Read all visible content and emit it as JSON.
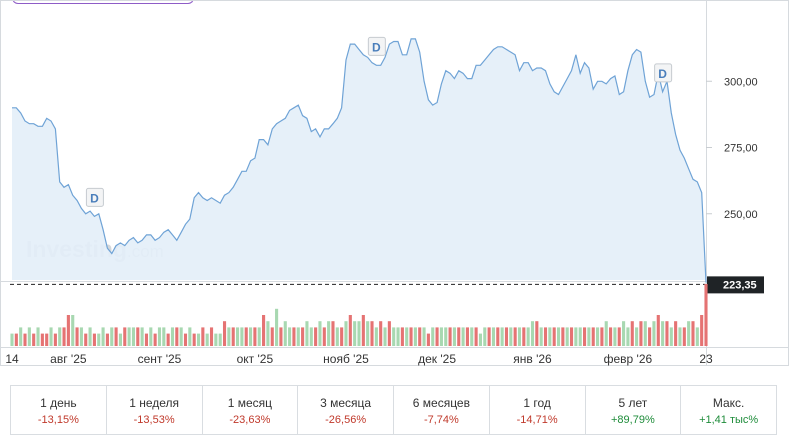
{
  "colors": {
    "line": "#6fa3d6",
    "area": "#e3eef8",
    "vol_up": "#a8d8b1",
    "vol_down": "#e57373",
    "neg": "#c0392b",
    "pos": "#1e8c3a"
  },
  "watermark": {
    "brand": "Investing",
    "suffix": ".com"
  },
  "chart_data": {
    "type": "area",
    "ylim": [
      225,
      325
    ],
    "yticks": [
      "300,00",
      "275,00",
      "250,00"
    ],
    "ytick_values": [
      300,
      275,
      250
    ],
    "current_price": 223.35,
    "current_price_label": "223,35",
    "xticks": [
      {
        "label": "14",
        "index": 0
      },
      {
        "label": "авг '25",
        "index": 13
      },
      {
        "label": "сент '25",
        "index": 34
      },
      {
        "label": "окт '25",
        "index": 56
      },
      {
        "label": "нояб '25",
        "index": 77
      },
      {
        "label": "дек '25",
        "index": 98
      },
      {
        "label": "янв '26",
        "index": 120
      },
      {
        "label": "февр '26",
        "index": 142
      },
      {
        "label": "23",
        "index": 160
      }
    ],
    "series": [
      {
        "values": [
          290,
          290,
          288,
          285,
          284,
          284,
          283,
          283,
          286,
          285,
          282,
          262,
          260,
          261,
          257,
          255,
          252,
          250,
          251,
          249,
          250,
          244,
          237,
          235,
          238,
          239,
          238,
          240,
          241,
          239,
          240,
          242,
          242,
          240,
          241,
          243,
          244,
          242,
          240,
          243,
          246,
          248,
          256,
          258,
          256,
          255,
          256,
          255,
          254,
          257,
          258,
          260,
          263,
          266,
          266,
          270,
          271,
          278,
          278,
          276,
          282,
          284,
          285,
          286,
          289,
          290,
          291,
          287,
          286,
          281,
          282,
          279,
          282,
          282,
          284,
          286,
          290,
          308,
          314,
          314,
          312,
          310,
          309,
          307,
          306,
          306,
          309,
          314,
          315,
          315,
          310,
          310,
          316,
          316,
          311,
          300,
          293,
          291,
          292,
          299,
          304,
          303,
          301,
          304,
          303,
          301,
          301,
          306,
          306,
          308,
          310,
          312,
          313,
          313,
          312,
          311,
          310,
          304,
          307,
          307,
          304,
          305,
          305,
          304,
          299,
          296,
          295,
          298,
          301,
          304,
          310,
          303,
          307,
          305,
          297,
          300,
          300,
          299,
          301,
          302,
          295,
          296,
          304,
          310,
          312,
          311,
          300,
          294,
          295,
          303,
          296,
          300,
          288,
          280,
          274,
          271,
          267,
          263,
          262,
          258,
          224
        ]
      },
      {
        "name": "volume",
        "values": [
          2,
          2,
          3,
          2,
          3,
          2,
          3,
          2,
          2,
          3,
          2,
          3,
          3,
          5,
          5,
          3,
          3,
          2,
          3,
          2,
          2,
          3,
          2,
          3,
          3,
          2,
          3,
          3,
          3,
          3,
          3,
          2,
          3,
          2,
          3,
          3,
          2,
          3,
          3,
          3,
          2,
          3,
          2,
          2,
          3,
          2,
          3,
          2,
          2,
          4,
          3,
          3,
          3,
          3,
          3,
          3,
          3,
          3,
          5,
          4,
          3,
          6,
          3,
          4,
          3,
          3,
          3,
          3,
          4,
          3,
          3,
          4,
          3,
          4,
          4,
          3,
          3,
          4,
          5,
          4,
          4,
          5,
          4,
          4,
          3,
          4,
          3,
          4,
          3,
          3,
          3,
          3,
          3,
          3,
          3,
          3,
          2,
          3,
          3,
          3,
          3,
          3,
          3,
          3,
          3,
          3,
          3,
          3,
          2,
          3,
          3,
          3,
          3,
          3,
          3,
          3,
          3,
          3,
          3,
          3,
          4,
          4,
          3,
          3,
          3,
          3,
          3,
          3,
          3,
          3,
          3,
          3,
          3,
          3,
          3,
          3,
          3,
          4,
          3,
          3,
          3,
          4,
          3,
          4,
          3,
          4,
          4,
          3,
          4,
          5,
          4,
          4,
          3,
          4,
          3,
          3,
          4,
          4,
          3,
          5,
          10
        ]
      }
    ],
    "volume_up": [
      1,
      0,
      1,
      0,
      1,
      0,
      1,
      0,
      0,
      1,
      0,
      1,
      0,
      0,
      1,
      0,
      1,
      0,
      1,
      0,
      1,
      1,
      0,
      1,
      0,
      1,
      0,
      1,
      1,
      0,
      1,
      0,
      1,
      0,
      1,
      1,
      0,
      1,
      0,
      1,
      0,
      1,
      0,
      1,
      0,
      1,
      0,
      1,
      1,
      0,
      1,
      0,
      1,
      1,
      0,
      1,
      0,
      1,
      0,
      1,
      0,
      1,
      0,
      1,
      1,
      0,
      1,
      0,
      1,
      1,
      0,
      1,
      0,
      1,
      0,
      1,
      0,
      1,
      0,
      1,
      1,
      0,
      1,
      0,
      1,
      0,
      1,
      0,
      1,
      1,
      0,
      1,
      0,
      1,
      0,
      1,
      0,
      1,
      0,
      1,
      1,
      0,
      1,
      0,
      1,
      0,
      1,
      0,
      1,
      1,
      0,
      1,
      0,
      1,
      0,
      1,
      0,
      1,
      0,
      1,
      1,
      0,
      1,
      0,
      1,
      0,
      1,
      0,
      1,
      0,
      1,
      1,
      0,
      1,
      0,
      1,
      0,
      1,
      0,
      1,
      0,
      1,
      1,
      0,
      1,
      0,
      1,
      0,
      1,
      0,
      1,
      0,
      1,
      0,
      1,
      0,
      1,
      0,
      1,
      0,
      0
    ],
    "dividend_markers": [
      {
        "label": "D",
        "index": 19
      },
      {
        "label": "D",
        "index": 84
      },
      {
        "label": "D",
        "index": 150
      }
    ]
  },
  "periods": [
    {
      "label": "1 день",
      "value": "-13,15%",
      "dir": "neg"
    },
    {
      "label": "1 неделя",
      "value": "-13,53%",
      "dir": "neg"
    },
    {
      "label": "1 месяц",
      "value": "-23,63%",
      "dir": "neg"
    },
    {
      "label": "3 месяца",
      "value": "-26,56%",
      "dir": "neg"
    },
    {
      "label": "6 месяцев",
      "value": "-7,74%",
      "dir": "neg"
    },
    {
      "label": "1 год",
      "value": "-14,71%",
      "dir": "neg"
    },
    {
      "label": "5 лет",
      "value": "+89,79%",
      "dir": "pos"
    },
    {
      "label": "Макс.",
      "value": "+1,41 тыс%",
      "dir": "pos"
    }
  ]
}
